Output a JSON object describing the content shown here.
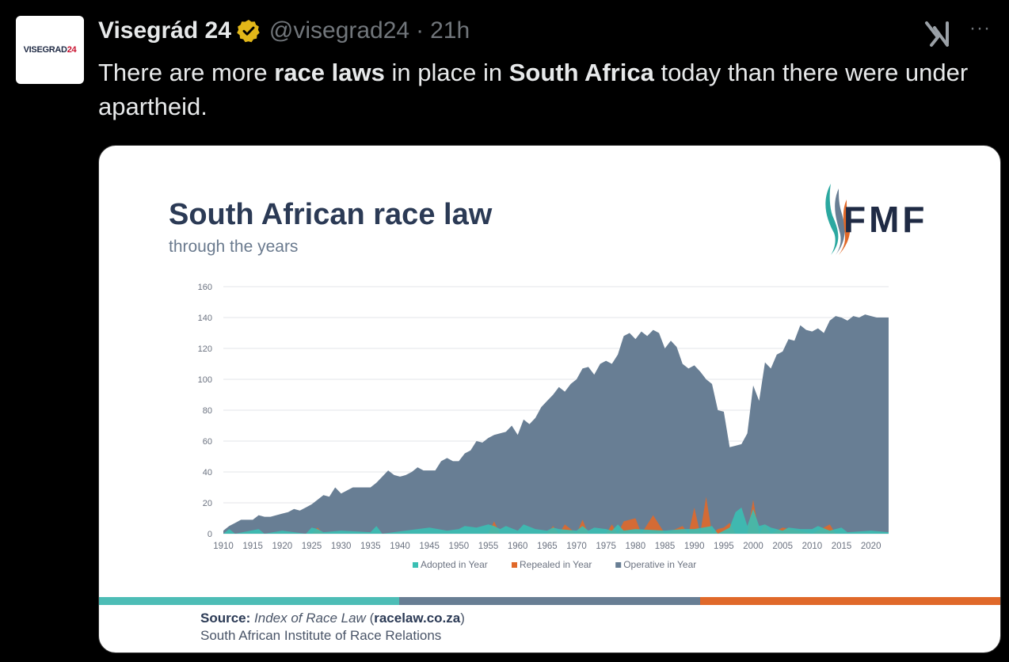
{
  "tweet": {
    "display_name": "Visegrád 24",
    "handle": "@visegrad24",
    "separator": "·",
    "time": "21h",
    "avatar_text_main": "VISEGRAD",
    "avatar_text_num": "24",
    "text_parts": [
      "There are more ",
      "race laws",
      " in place in ",
      "South Africa",
      " today than there were under apartheid."
    ],
    "more_label": "···"
  },
  "logo": {
    "text": "FMF"
  },
  "colors": {
    "adopted": "#3bbfb3",
    "repealed": "#e0692a",
    "operative": "#687e94",
    "stripe_teal": "#4dbdb6",
    "stripe_slate": "#687e94",
    "stripe_orange": "#e0692a",
    "verified": "#e2b719"
  },
  "source": {
    "label": "Source:",
    "index_text": "Index of Race Law",
    "url_text": "racelaw.co.za",
    "institute": "South African Institute of Race Relations"
  },
  "chart_data": {
    "type": "area",
    "title": "South African race law",
    "subtitle": "through the years",
    "xlabel": "",
    "ylabel": "",
    "ylim": [
      0,
      160
    ],
    "yticks": [
      "0",
      "20",
      "40",
      "60",
      "80",
      "100",
      "120",
      "140",
      "160"
    ],
    "xticks": [
      "1910",
      "1915",
      "1920",
      "1925",
      "1930",
      "1935",
      "1940",
      "1945",
      "1950",
      "1955",
      "1960",
      "1965",
      "1970",
      "1975",
      "1980",
      "1985",
      "1990",
      "1995",
      "2000",
      "2005",
      "2010",
      "2015",
      "2020"
    ],
    "xlim": [
      1910,
      2023
    ],
    "grid": true,
    "legend_position": "bottom",
    "series": [
      {
        "name": "Operative in Year",
        "x": [
          1910,
          1911,
          1912,
          1913,
          1915,
          1916,
          1917,
          1918,
          1920,
          1921,
          1922,
          1923,
          1924,
          1925,
          1926,
          1927,
          1928,
          1929,
          1930,
          1932,
          1934,
          1935,
          1936,
          1938,
          1939,
          1940,
          1941,
          1942,
          1943,
          1944,
          1945,
          1946,
          1947,
          1948,
          1949,
          1950,
          1951,
          1952,
          1953,
          1954,
          1955,
          1956,
          1957,
          1958,
          1959,
          1960,
          1961,
          1962,
          1963,
          1964,
          1965,
          1966,
          1967,
          1968,
          1969,
          1970,
          1971,
          1972,
          1973,
          1974,
          1975,
          1976,
          1977,
          1978,
          1979,
          1980,
          1981,
          1982,
          1983,
          1984,
          1985,
          1986,
          1987,
          1988,
          1989,
          1990,
          1991,
          1992,
          1993,
          1994,
          1995,
          1996,
          1997,
          1998,
          1999,
          2000,
          2001,
          2002,
          2003,
          2004,
          2005,
          2006,
          2007,
          2008,
          2009,
          2010,
          2011,
          2012,
          2013,
          2014,
          2015,
          2016,
          2017,
          2018,
          2019,
          2020,
          2021,
          2022,
          2023
        ],
        "values": [
          2,
          5,
          7,
          9,
          9,
          12,
          11,
          11,
          13,
          14,
          16,
          15,
          17,
          19,
          22,
          25,
          24,
          30,
          26,
          30,
          30,
          30,
          33,
          41,
          38,
          37,
          38,
          40,
          43,
          41,
          41,
          41,
          47,
          49,
          47,
          47,
          52,
          54,
          60,
          59,
          62,
          64,
          65,
          66,
          70,
          64,
          74,
          71,
          75,
          82,
          86,
          90,
          95,
          92,
          97,
          100,
          107,
          108,
          103,
          110,
          112,
          110,
          116,
          128,
          130,
          126,
          131,
          128,
          132,
          130,
          120,
          125,
          121,
          110,
          107,
          109,
          105,
          100,
          97,
          80,
          79,
          56,
          57,
          58,
          65,
          96,
          86,
          111,
          107,
          116,
          118,
          126,
          125,
          135,
          132,
          131,
          133,
          130,
          138,
          141,
          140,
          138,
          141,
          140,
          142,
          141,
          140,
          140,
          140
        ]
      },
      {
        "name": "Repealed in Year",
        "x": [
          1910,
          1925,
          1926,
          1927,
          1940,
          1955,
          1956,
          1957,
          1960,
          1965,
          1966,
          1967,
          1968,
          1970,
          1971,
          1972,
          1975,
          1976,
          1977,
          1978,
          1980,
          1981,
          1983,
          1984,
          1985,
          1988,
          1989,
          1990,
          1991,
          1992,
          1993,
          1994,
          1995,
          1996,
          1997,
          1998,
          1999,
          2000,
          2001,
          2002,
          2003,
          2005,
          2010,
          2013,
          2014,
          2015,
          2023
        ],
        "values": [
          0,
          0,
          4,
          0,
          0,
          0,
          8,
          0,
          0,
          0,
          5,
          0,
          6,
          0,
          9,
          0,
          0,
          6,
          0,
          8,
          10,
          0,
          12,
          6,
          0,
          5,
          0,
          17,
          0,
          24,
          0,
          3,
          4,
          7,
          0,
          0,
          0,
          22,
          0,
          6,
          0,
          4,
          0,
          6,
          0,
          0,
          0
        ]
      },
      {
        "name": "Adopted in Year",
        "x": [
          1910,
          1911,
          1912,
          1916,
          1917,
          1920,
          1924,
          1925,
          1926,
          1927,
          1930,
          1935,
          1936,
          1937,
          1945,
          1948,
          1950,
          1951,
          1953,
          1955,
          1956,
          1957,
          1958,
          1960,
          1961,
          1963,
          1965,
          1966,
          1967,
          1970,
          1971,
          1972,
          1973,
          1975,
          1976,
          1977,
          1978,
          1980,
          1985,
          1988,
          1990,
          1993,
          1994,
          1995,
          1996,
          1997,
          1998,
          1999,
          2000,
          2001,
          2002,
          2003,
          2005,
          2006,
          2008,
          2010,
          2011,
          2013,
          2014,
          2015,
          2016,
          2020,
          2023
        ],
        "values": [
          0,
          3,
          0,
          3,
          0,
          2,
          0,
          4,
          3,
          1,
          2,
          1,
          5,
          0,
          4,
          2,
          3,
          5,
          4,
          6,
          5,
          3,
          5,
          2,
          6,
          3,
          2,
          4,
          3,
          2,
          5,
          2,
          4,
          3,
          2,
          6,
          2,
          3,
          2,
          3,
          3,
          5,
          0,
          2,
          4,
          14,
          17,
          5,
          16,
          5,
          6,
          4,
          2,
          4,
          3,
          3,
          5,
          2,
          3,
          4,
          1,
          2,
          1
        ]
      }
    ],
    "legend": [
      "Adopted in Year",
      "Repealed in Year",
      "Operative in Year"
    ]
  }
}
